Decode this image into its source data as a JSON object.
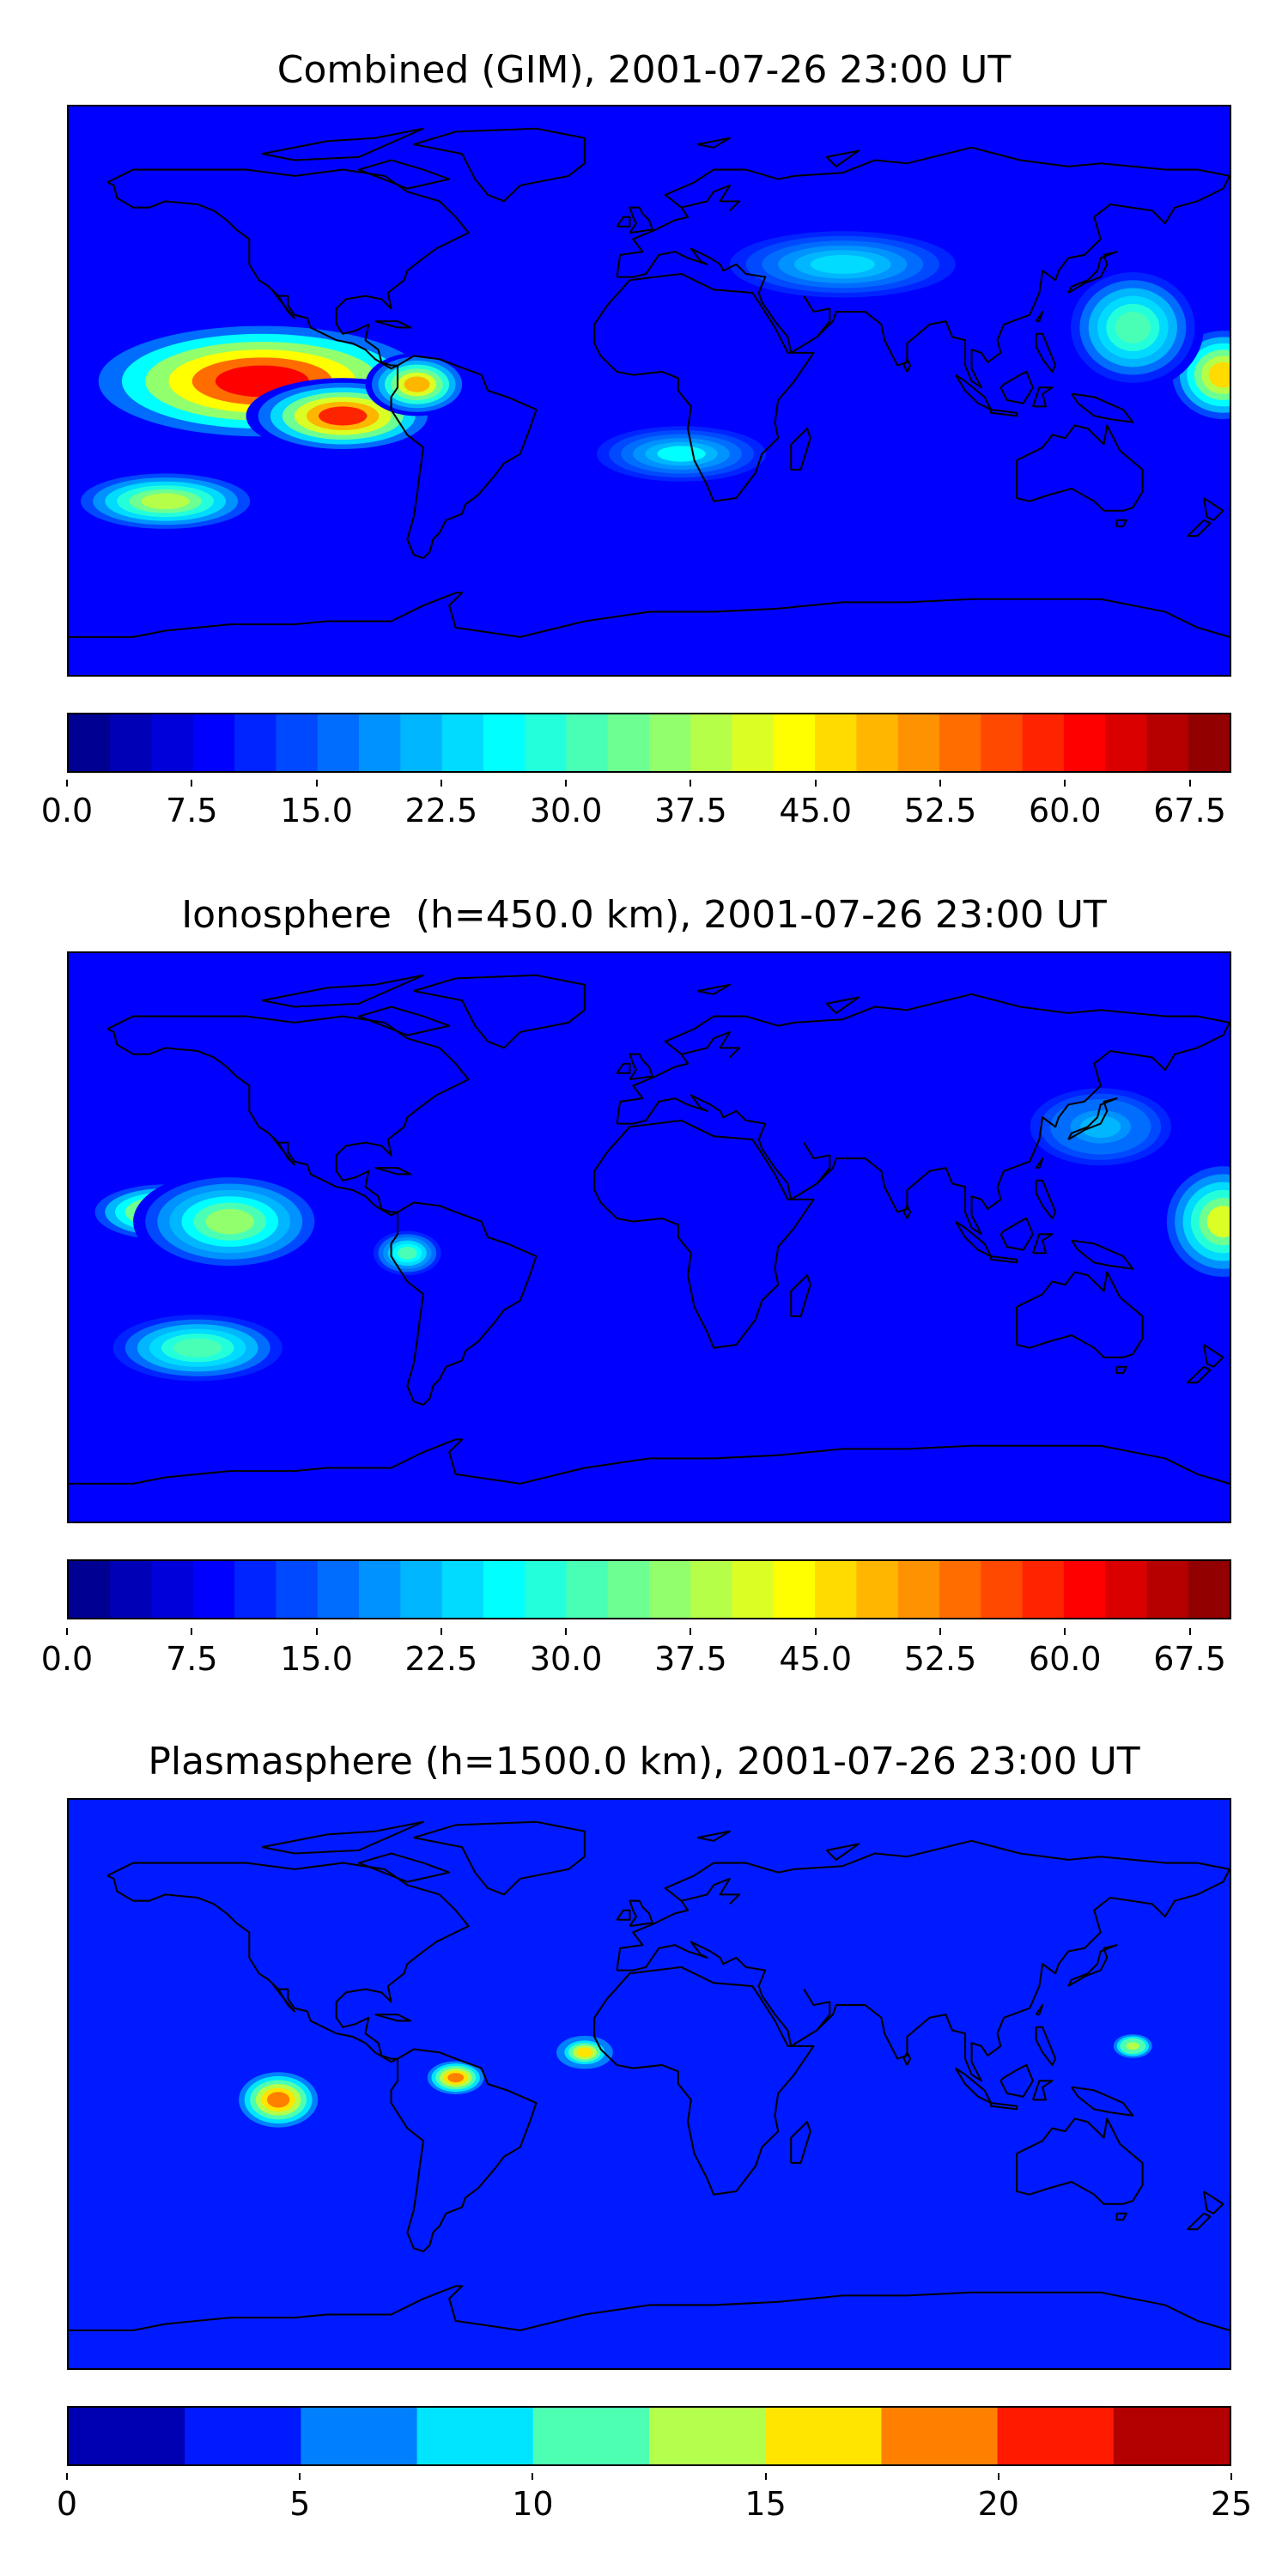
{
  "panels": [
    {
      "title": "Combined (GIM), 2001-07-26 23:00 UT",
      "colorbar": {
        "min": 0,
        "max": 70,
        "levels": 28,
        "ticks": [
          "0.0",
          "7.5",
          "15.0",
          "22.5",
          "30.0",
          "37.5",
          "45.0",
          "52.5",
          "60.0",
          "67.5"
        ],
        "tick_values": [
          0,
          7.5,
          15,
          22.5,
          30,
          37.5,
          45,
          52.5,
          60,
          67.5
        ]
      },
      "blobs": [
        {
          "lon": -120,
          "lat": 3,
          "rx": 58,
          "ry": 20,
          "v": 62
        },
        {
          "lon": -95,
          "lat": -8,
          "rx": 30,
          "ry": 12,
          "v": 58
        },
        {
          "lon": -72,
          "lat": 2,
          "rx": 16,
          "ry": 10,
          "v": 48
        },
        {
          "lon": -150,
          "lat": -35,
          "rx": 30,
          "ry": 10,
          "v": 38
        },
        {
          "lon": 178,
          "lat": 5,
          "rx": 18,
          "ry": 16,
          "v": 45
        },
        {
          "lon": 150,
          "lat": 20,
          "rx": 22,
          "ry": 20,
          "v": 32
        },
        {
          "lon": 10,
          "lat": -20,
          "rx": 30,
          "ry": 10,
          "v": 25
        },
        {
          "lon": 60,
          "lat": 40,
          "rx": 40,
          "ry": 12,
          "v": 24
        }
      ]
    },
    {
      "title": "Ionosphere  (h=450.0 km), 2001-07-26 23:00 UT",
      "colorbar": {
        "min": 0,
        "max": 70,
        "levels": 28,
        "ticks": [
          "0.0",
          "7.5",
          "15.0",
          "22.5",
          "30.0",
          "37.5",
          "45.0",
          "52.5",
          "60.0",
          "67.5"
        ],
        "tick_values": [
          0,
          7.5,
          15,
          22.5,
          30,
          37.5,
          45,
          52.5,
          60,
          67.5
        ]
      },
      "blobs": [
        {
          "lon": -150,
          "lat": 8,
          "rx": 25,
          "ry": 10,
          "v": 45
        },
        {
          "lon": -130,
          "lat": 5,
          "rx": 30,
          "ry": 16,
          "v": 36
        },
        {
          "lon": -140,
          "lat": -35,
          "rx": 30,
          "ry": 12,
          "v": 32
        },
        {
          "lon": 178,
          "lat": 5,
          "rx": 20,
          "ry": 20,
          "v": 40
        },
        {
          "lon": -75,
          "lat": -5,
          "rx": 12,
          "ry": 8,
          "v": 30
        },
        {
          "lon": 140,
          "lat": 35,
          "rx": 25,
          "ry": 14,
          "v": 22
        }
      ]
    },
    {
      "title": "Plasmasphere (h=1500.0 km), 2001-07-26 23:00 UT",
      "colorbar": {
        "min": 0,
        "max": 25,
        "levels": 10,
        "ticks": [
          "0",
          "5",
          "10",
          "15",
          "20",
          "25"
        ],
        "tick_values": [
          0,
          5,
          10,
          15,
          20,
          25
        ]
      },
      "blobs": [
        {
          "lon": -115,
          "lat": -5,
          "rx": 14,
          "ry": 10,
          "v": 18.5
        },
        {
          "lon": -60,
          "lat": 2,
          "rx": 10,
          "ry": 6,
          "v": 18
        },
        {
          "lon": -20,
          "lat": 10,
          "rx": 10,
          "ry": 6,
          "v": 16
        },
        {
          "lon": 150,
          "lat": 12,
          "rx": 8,
          "ry": 5,
          "v": 14
        }
      ]
    }
  ]
}
